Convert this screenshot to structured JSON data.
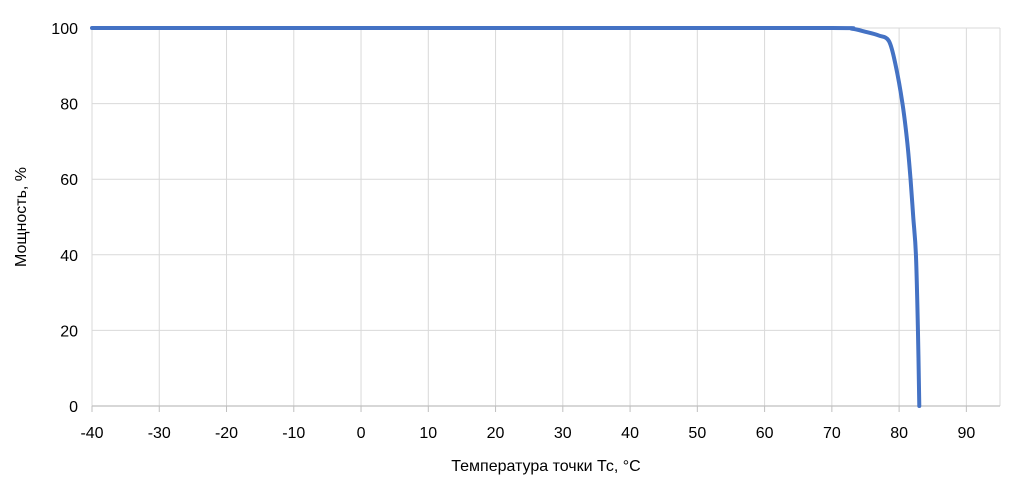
{
  "chart_data": {
    "type": "line",
    "title": "",
    "xlabel": "Температура точки Тс, °С",
    "ylabel": "Мощность, %",
    "xlim": [
      -40,
      95
    ],
    "ylim": [
      0,
      100
    ],
    "xticks": [
      -40,
      -30,
      -20,
      -10,
      0,
      10,
      20,
      30,
      40,
      50,
      60,
      70,
      80,
      90
    ],
    "yticks": [
      0,
      20,
      40,
      60,
      80,
      100
    ],
    "grid": true,
    "legend": "none",
    "series": [
      {
        "color": "#4472c4",
        "x": [
          -40,
          0,
          40,
          70,
          73,
          75,
          77,
          78.5,
          79.5,
          80.5,
          81.2,
          81.7,
          82.1,
          82.5,
          82.8,
          83
        ],
        "y": [
          100,
          100,
          100,
          100,
          99.8,
          99,
          98,
          96.5,
          90,
          80,
          70,
          60,
          50,
          40,
          20,
          0
        ]
      }
    ]
  }
}
